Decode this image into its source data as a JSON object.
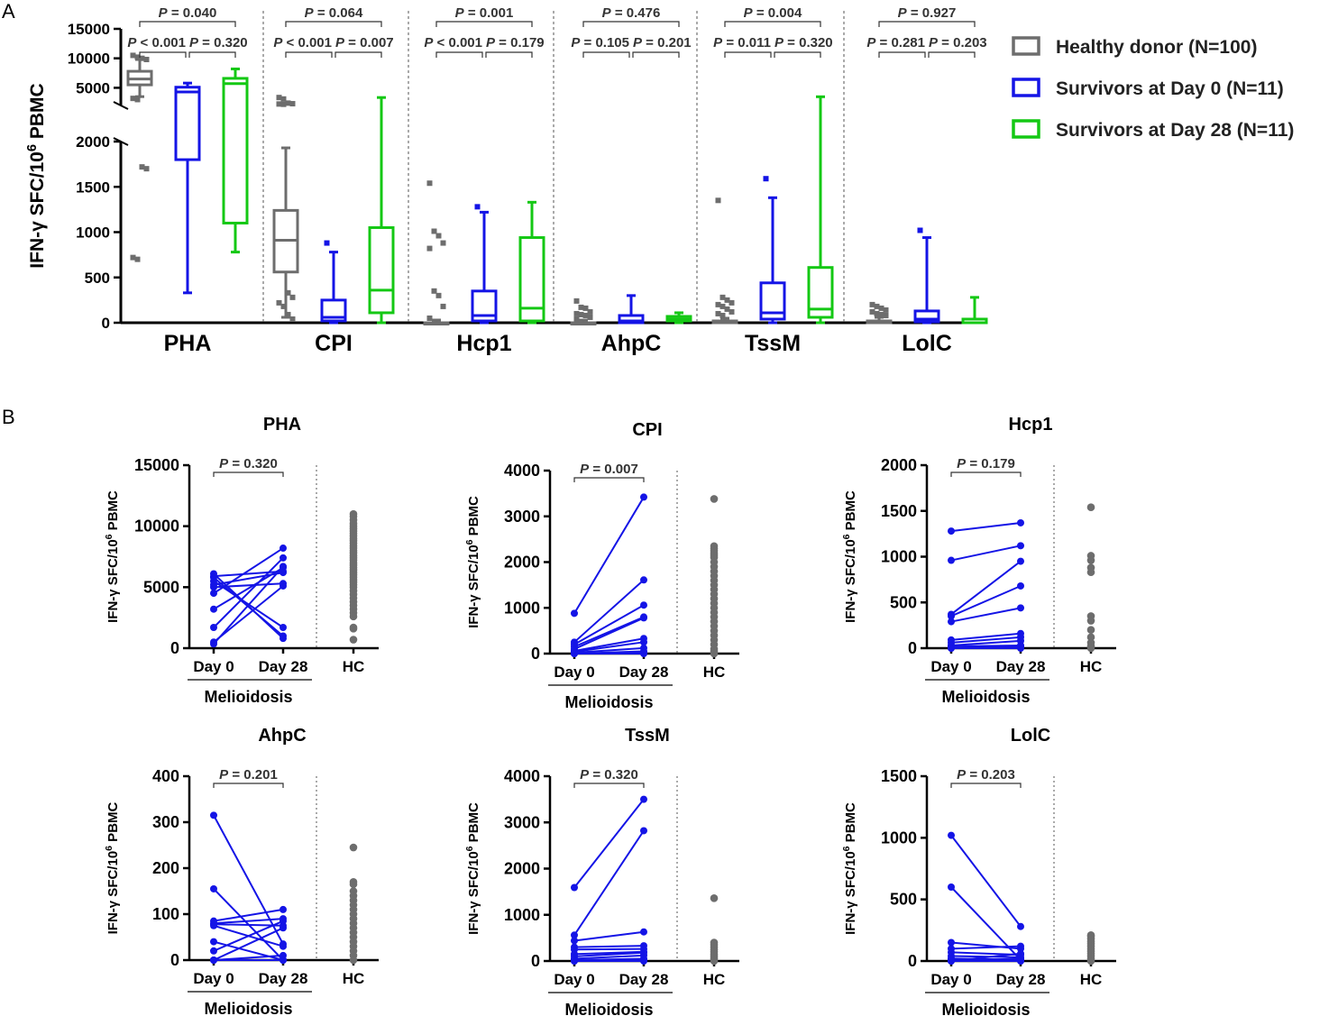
{
  "panel_labels": {
    "a": "A",
    "b": "B"
  },
  "chart_data": [
    {
      "type": "box",
      "panel": "A",
      "ylabel": "IFN-γ SFC/10⁶ PBMC",
      "y_axis": {
        "type": "segmented",
        "lower_range": [
          0,
          2000
        ],
        "upper_range": [
          2000,
          15000
        ],
        "lower_ticks": [
          "0",
          "500",
          "1000",
          "1500",
          "2000"
        ],
        "upper_ticks": [
          "5000",
          "10000",
          "15000"
        ]
      },
      "legend": [
        {
          "label": "Healthy donor (N=100)",
          "color": "#6d6d6d"
        },
        {
          "label": "Survivors at Day 0 (N=11)",
          "color": "#1414e6"
        },
        {
          "label": "Survivors at Day 28 (N=11)",
          "color": "#14c814"
        }
      ],
      "groups": [
        {
          "name": "PHA",
          "p_values": {
            "hd_vs_d28": "P = 0.040",
            "hd_vs_d0": "P < 0.001",
            "d0_vs_d28": "P = 0.320"
          },
          "boxes": [
            {
              "series": "Healthy donor (N=100)",
              "whisker_low": 3500,
              "q1": 5500,
              "median": 6500,
              "q3": 7800,
              "whisker_high": 9800,
              "outliers": [
                10500,
                10200,
                10000,
                9800,
                3200,
                3000,
                1720,
                1700,
                720,
                700
              ]
            },
            {
              "series": "Survivors at Day 0 (N=11)",
              "whisker_low": 330,
              "q1": 1800,
              "median": 4300,
              "q3": 5100,
              "whisker_high": 5800,
              "outliers": []
            },
            {
              "series": "Survivors at Day 28 (N=11)",
              "whisker_low": 780,
              "q1": 1100,
              "median": 5700,
              "q3": 6600,
              "whisker_high": 8200,
              "outliers": []
            }
          ]
        },
        {
          "name": "CPI",
          "p_values": {
            "hd_vs_d28": "P = 0.064",
            "hd_vs_d0": "P < 0.001",
            "d0_vs_d28": "P = 0.007"
          },
          "boxes": [
            {
              "series": "Healthy donor (N=100)",
              "whisker_low": 60,
              "q1": 560,
              "median": 910,
              "q3": 1240,
              "whisker_high": 1930,
              "outliers": [
                3350,
                3100,
                2400,
                2300,
                2250,
                2200,
                330,
                280,
                220,
                180,
                90,
                40
              ]
            },
            {
              "series": "Survivors at Day 0 (N=11)",
              "whisker_low": 0,
              "q1": 20,
              "median": 60,
              "q3": 250,
              "whisker_high": 780,
              "outliers": [
                880
              ]
            },
            {
              "series": "Survivors at Day 28 (N=11)",
              "whisker_low": 0,
              "q1": 110,
              "median": 360,
              "q3": 1050,
              "whisker_high": 3350,
              "outliers": []
            }
          ]
        },
        {
          "name": "Hcp1",
          "p_values": {
            "hd_vs_d28": "P = 0.001",
            "hd_vs_d0": "P < 0.001",
            "d0_vs_d28": "P = 0.179"
          },
          "boxes": [
            {
              "series": "Healthy donor (N=100)",
              "whisker_low": 0,
              "q1": 0,
              "median": 0,
              "q3": 0,
              "whisker_high": 30,
              "outliers": [
                1540,
                1010,
                960,
                880,
                820,
                350,
                300,
                180,
                50
              ]
            },
            {
              "series": "Survivors at Day 0 (N=11)",
              "whisker_low": 0,
              "q1": 20,
              "median": 80,
              "q3": 350,
              "whisker_high": 1220,
              "outliers": [
                1280
              ]
            },
            {
              "series": "Survivors at Day 28 (N=11)",
              "whisker_low": 0,
              "q1": 20,
              "median": 160,
              "q3": 940,
              "whisker_high": 1330,
              "outliers": []
            }
          ]
        },
        {
          "name": "AhpC",
          "p_values": {
            "hd_vs_d28": "P = 0.476",
            "hd_vs_d0": "P = 0.105",
            "d0_vs_d28": "P = 0.201"
          },
          "boxes": [
            {
              "series": "Healthy donor (N=100)",
              "whisker_low": 0,
              "q1": 0,
              "median": 0,
              "q3": 0,
              "whisker_high": 30,
              "outliers": [
                240,
                170,
                160,
                120,
                100,
                90,
                80,
                60,
                40
              ]
            },
            {
              "series": "Survivors at Day 0 (N=11)",
              "whisker_low": 0,
              "q1": 0,
              "median": 20,
              "q3": 80,
              "whisker_high": 300,
              "outliers": []
            },
            {
              "series": "Survivors at Day 28 (N=11)",
              "whisker_low": 0,
              "q1": 20,
              "median": 40,
              "q3": 70,
              "whisker_high": 110,
              "outliers": []
            }
          ]
        },
        {
          "name": "TssM",
          "p_values": {
            "hd_vs_d28": "P = 0.004",
            "hd_vs_d0": "P = 0.011",
            "d0_vs_d28": "P = 0.320"
          },
          "boxes": [
            {
              "series": "Healthy donor (N=100)",
              "whisker_low": 0,
              "q1": 0,
              "median": 0,
              "q3": 20,
              "whisker_high": 50,
              "outliers": [
                1350,
                280,
                250,
                220,
                200,
                180,
                150,
                120,
                100,
                80
              ]
            },
            {
              "series": "Survivors at Day 0 (N=11)",
              "whisker_low": 0,
              "q1": 40,
              "median": 110,
              "q3": 440,
              "whisker_high": 1380,
              "outliers": [
                1590
              ]
            },
            {
              "series": "Survivors at Day 28 (N=11)",
              "whisker_low": 0,
              "q1": 60,
              "median": 150,
              "q3": 610,
              "whisker_high": 3480,
              "outliers": []
            }
          ]
        },
        {
          "name": "LolC",
          "p_values": {
            "hd_vs_d28": "P = 0.927",
            "hd_vs_d0": "P = 0.281",
            "d0_vs_d28": "P = 0.203"
          },
          "boxes": [
            {
              "series": "Healthy donor (N=100)",
              "whisker_low": 0,
              "q1": 0,
              "median": 0,
              "q3": 20,
              "whisker_high": 60,
              "outliers": [
                200,
                180,
                160,
                140,
                120,
                100,
                90,
                80
              ]
            },
            {
              "series": "Survivors at Day 0 (N=11)",
              "whisker_low": 0,
              "q1": 10,
              "median": 40,
              "q3": 130,
              "whisker_high": 940,
              "outliers": [
                1020
              ]
            },
            {
              "series": "Survivors at Day 28 (N=11)",
              "whisker_low": 0,
              "q1": 0,
              "median": 0,
              "q3": 40,
              "whisker_high": 280,
              "outliers": []
            }
          ]
        }
      ]
    },
    {
      "type": "paired_scatter",
      "panel": "B",
      "ylabel": "IFN-γ SFC/10⁶ PBMC",
      "x_categories": [
        "Day 0",
        "Day 28",
        "HC"
      ],
      "group_label": "Melioidosis",
      "series_colors": {
        "paired": "#1414e6",
        "hc": "#6d6d6d"
      },
      "subplots": [
        {
          "title": "PHA",
          "p_value": "P = 0.320",
          "ylim": [
            0,
            15000
          ],
          "yticks": [
            0,
            5000,
            10000,
            15000
          ],
          "pairs": [
            [
              500,
              5100
            ],
            [
              350,
              6700
            ],
            [
              1700,
              7400
            ],
            [
              3200,
              6600
            ],
            [
              4500,
              8200
            ],
            [
              5000,
              5300
            ],
            [
              5200,
              6200
            ],
            [
              5500,
              1700
            ],
            [
              5800,
              1000
            ],
            [
              5900,
              6300
            ],
            [
              6100,
              800
            ]
          ],
          "hc": [
            11000,
            10800,
            10500,
            10200,
            10000,
            9800,
            9600,
            9400,
            9200,
            9000,
            8800,
            8600,
            8400,
            8200,
            8000,
            7800,
            7600,
            7400,
            7200,
            7000,
            6800,
            6600,
            6400,
            6200,
            6000,
            5800,
            5600,
            5400,
            5200,
            5000,
            4700,
            4400,
            4100,
            3800,
            3500,
            3200,
            2900,
            2600,
            1700,
            1600,
            700
          ]
        },
        {
          "title": "CPI",
          "p_value": "P = 0.007",
          "ylim": [
            0,
            4000
          ],
          "yticks": [
            0,
            1000,
            2000,
            3000,
            4000
          ],
          "pairs": [
            [
              880,
              3420
            ],
            [
              250,
              1610
            ],
            [
              200,
              1060
            ],
            [
              150,
              800
            ],
            [
              100,
              780
            ],
            [
              60,
              330
            ],
            [
              40,
              250
            ],
            [
              20,
              120
            ],
            [
              0,
              50
            ],
            [
              0,
              20
            ],
            [
              0,
              0
            ]
          ],
          "hc": [
            3380,
            2350,
            2300,
            2250,
            2200,
            2150,
            2100,
            2000,
            1900,
            1800,
            1700,
            1600,
            1500,
            1400,
            1300,
            1200,
            1100,
            1000,
            900,
            800,
            700,
            600,
            500,
            400,
            300,
            200,
            100,
            50,
            0
          ]
        },
        {
          "title": "Hcp1",
          "p_value": "P = 0.179",
          "ylim": [
            0,
            2000
          ],
          "yticks": [
            0,
            500,
            1000,
            1500,
            2000
          ],
          "pairs": [
            [
              1280,
              1370
            ],
            [
              960,
              1120
            ],
            [
              370,
              950
            ],
            [
              350,
              680
            ],
            [
              290,
              440
            ],
            [
              90,
              160
            ],
            [
              60,
              120
            ],
            [
              30,
              80
            ],
            [
              20,
              30
            ],
            [
              0,
              20
            ],
            [
              0,
              0
            ]
          ],
          "hc": [
            1540,
            1010,
            960,
            880,
            830,
            350,
            300,
            200,
            120,
            60,
            20,
            0
          ]
        },
        {
          "title": "AhpC",
          "p_value": "P = 0.201",
          "ylim": [
            0,
            400
          ],
          "yticks": [
            0,
            100,
            200,
            300,
            400
          ],
          "pairs": [
            [
              315,
              35
            ],
            [
              155,
              0
            ],
            [
              85,
              110
            ],
            [
              80,
              90
            ],
            [
              78,
              75
            ],
            [
              75,
              30
            ],
            [
              40,
              0
            ],
            [
              20,
              85
            ],
            [
              0,
              70
            ],
            [
              0,
              0
            ],
            [
              0,
              10
            ]
          ],
          "hc": [
            245,
            170,
            165,
            150,
            140,
            130,
            120,
            110,
            100,
            90,
            80,
            70,
            60,
            50,
            40,
            30,
            20,
            10,
            0
          ]
        },
        {
          "title": "TssM",
          "p_value": "P = 0.320",
          "ylim": [
            0,
            4000
          ],
          "yticks": [
            0,
            1000,
            2000,
            3000,
            4000
          ],
          "pairs": [
            [
              1590,
              3500
            ],
            [
              560,
              2820
            ],
            [
              440,
              630
            ],
            [
              300,
              330
            ],
            [
              250,
              260
            ],
            [
              150,
              200
            ],
            [
              100,
              180
            ],
            [
              50,
              120
            ],
            [
              20,
              50
            ],
            [
              0,
              10
            ],
            [
              0,
              0
            ]
          ],
          "hc": [
            1360,
            400,
            350,
            300,
            250,
            200,
            150,
            100,
            50,
            0
          ]
        },
        {
          "title": "LolC",
          "p_value": "P = 0.203",
          "ylim": [
            0,
            1500
          ],
          "yticks": [
            0,
            500,
            1000,
            1500
          ],
          "pairs": [
            [
              1020,
              280
            ],
            [
              600,
              10
            ],
            [
              150,
              100
            ],
            [
              100,
              120
            ],
            [
              70,
              50
            ],
            [
              40,
              30
            ],
            [
              20,
              10
            ],
            [
              10,
              0
            ],
            [
              0,
              60
            ],
            [
              0,
              0
            ],
            [
              0,
              20
            ]
          ],
          "hc": [
            210,
            200,
            180,
            160,
            140,
            120,
            100,
            80,
            60,
            40,
            20,
            0
          ]
        }
      ]
    }
  ]
}
